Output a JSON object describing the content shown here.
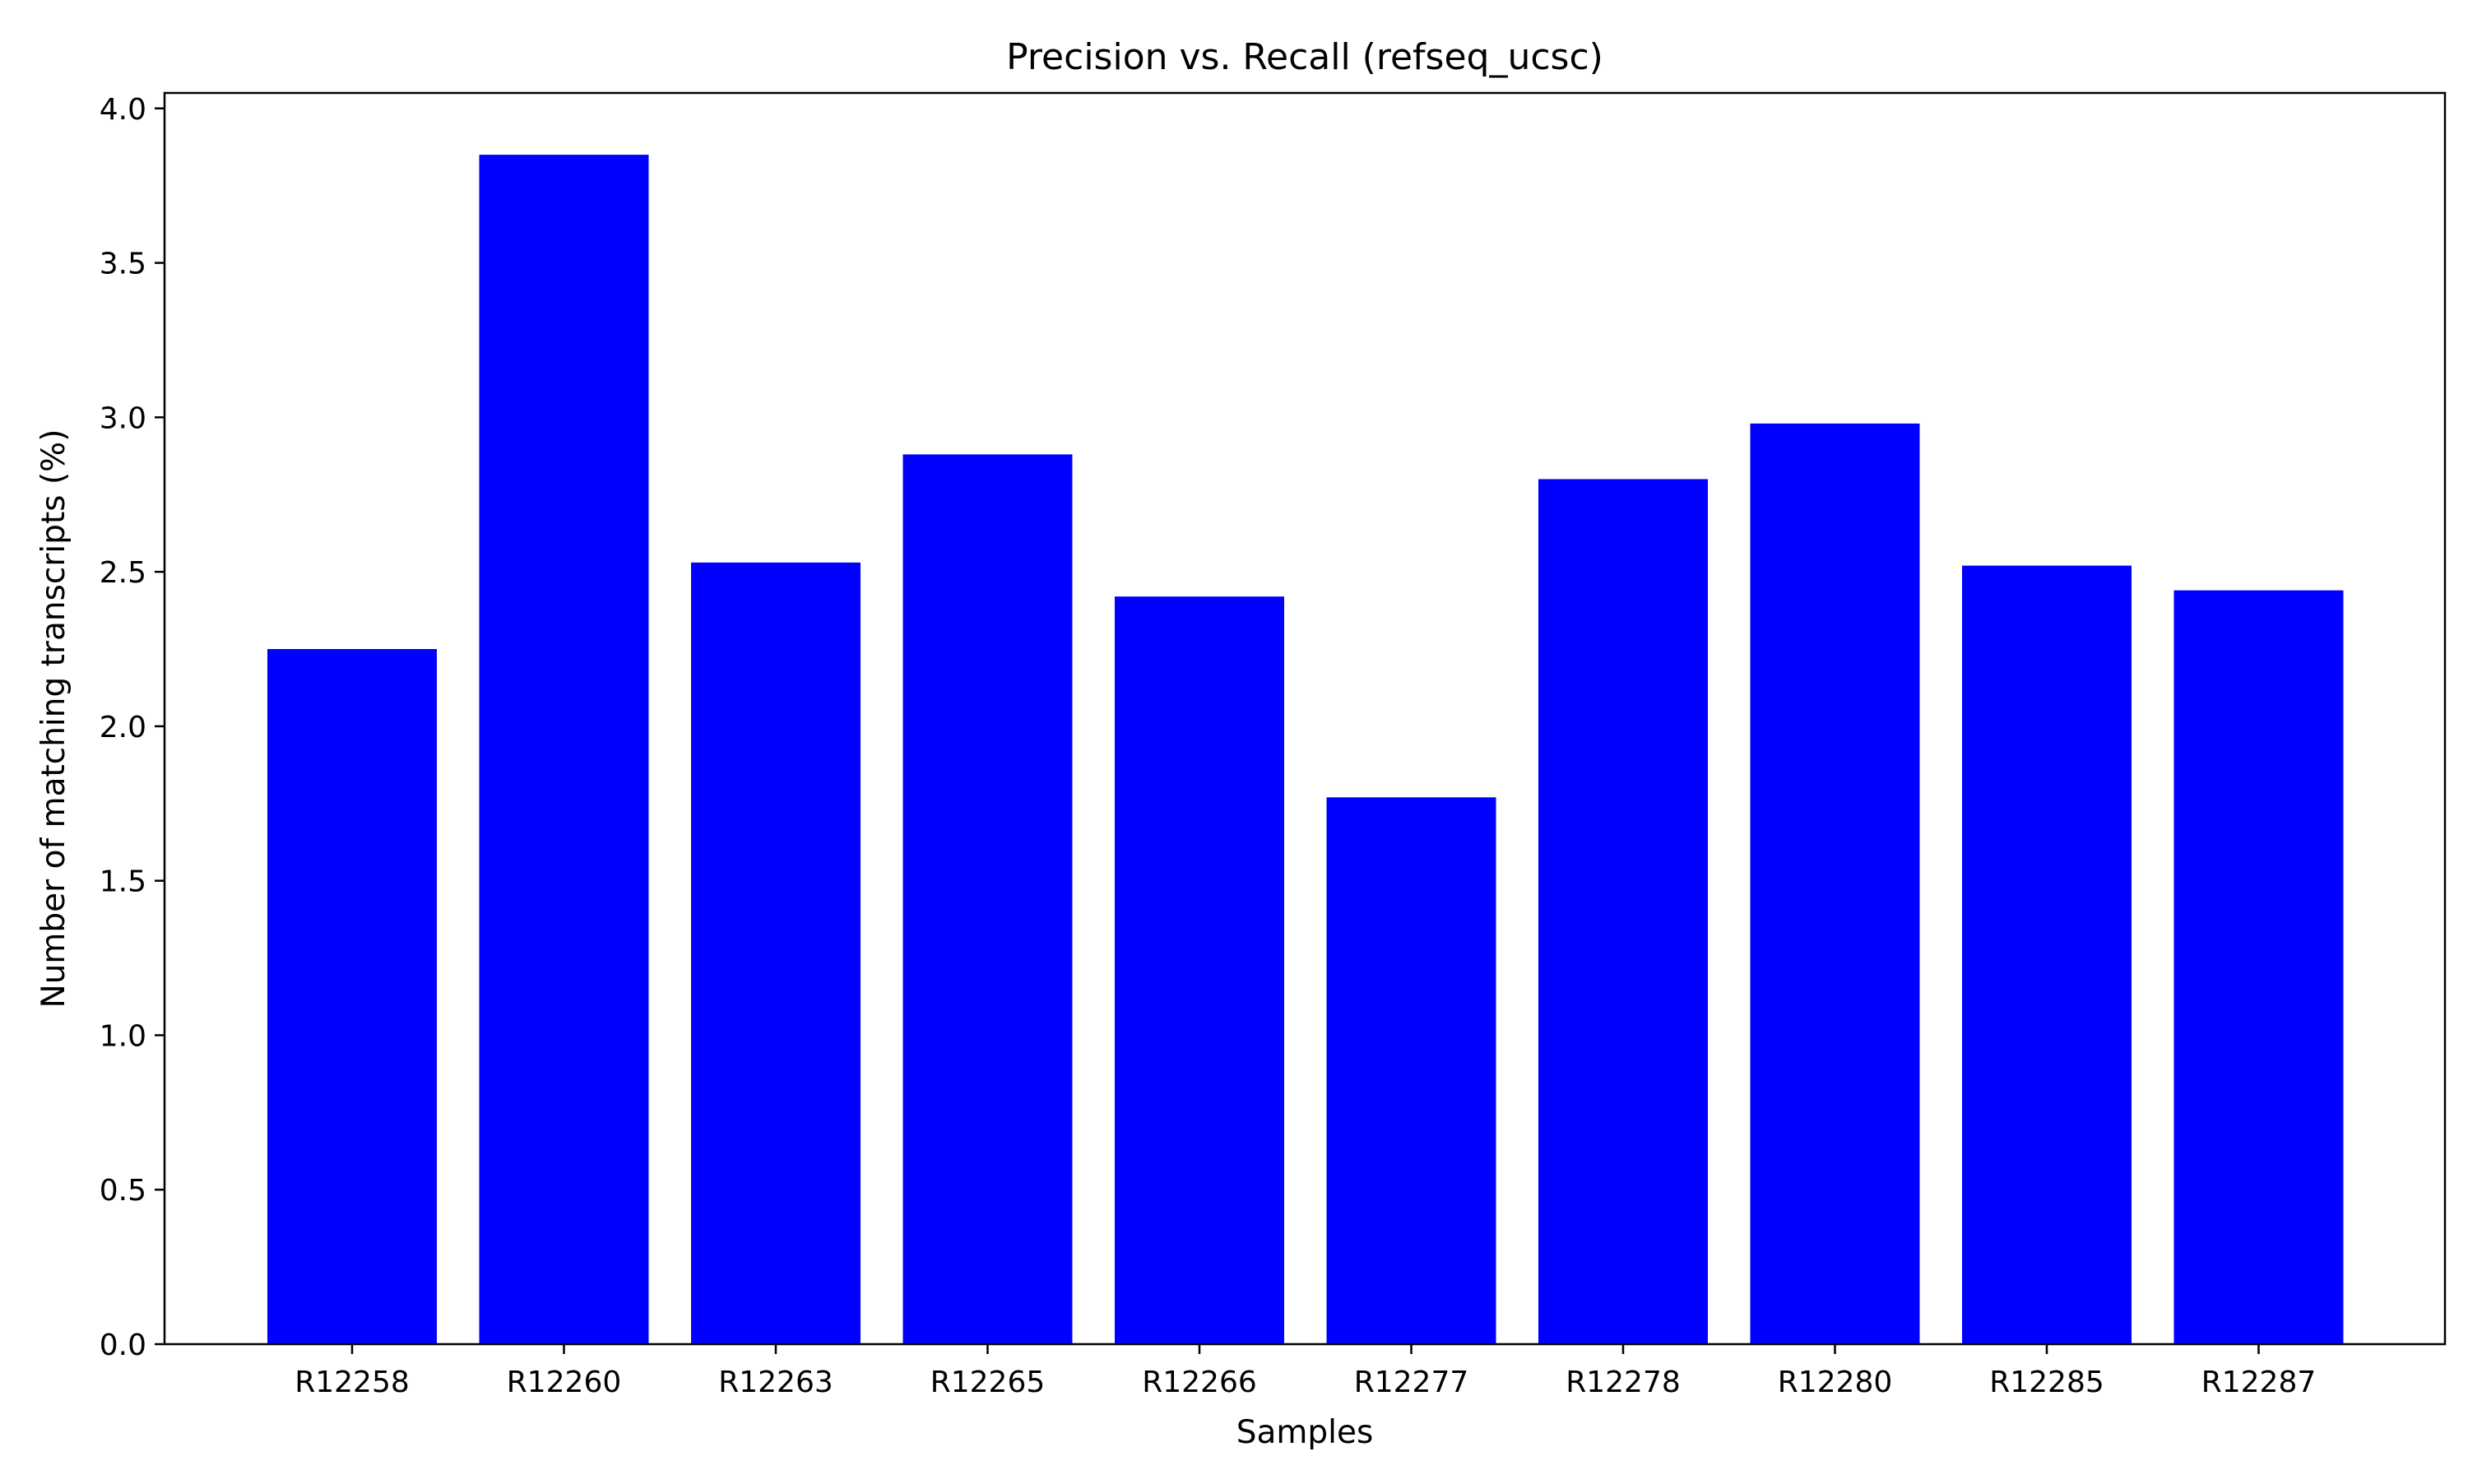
{
  "chart_data": {
    "type": "bar",
    "title": "Precision vs. Recall (refseq_ucsc)",
    "xlabel": "Samples",
    "ylabel": "Number of matching transcripts (%)",
    "categories": [
      "R12258",
      "R12260",
      "R12263",
      "R12265",
      "R12266",
      "R12277",
      "R12278",
      "R12280",
      "R12285",
      "R12287"
    ],
    "values": [
      2.25,
      3.85,
      2.53,
      2.88,
      2.42,
      1.77,
      2.8,
      2.98,
      2.52,
      2.44
    ],
    "ylim": [
      0,
      4.05
    ],
    "yticks": [
      "0.0",
      "0.5",
      "1.0",
      "1.5",
      "2.0",
      "2.5",
      "3.0",
      "3.5",
      "4.0"
    ],
    "bar_color": "#0000ff",
    "grid": false,
    "legend": false
  }
}
